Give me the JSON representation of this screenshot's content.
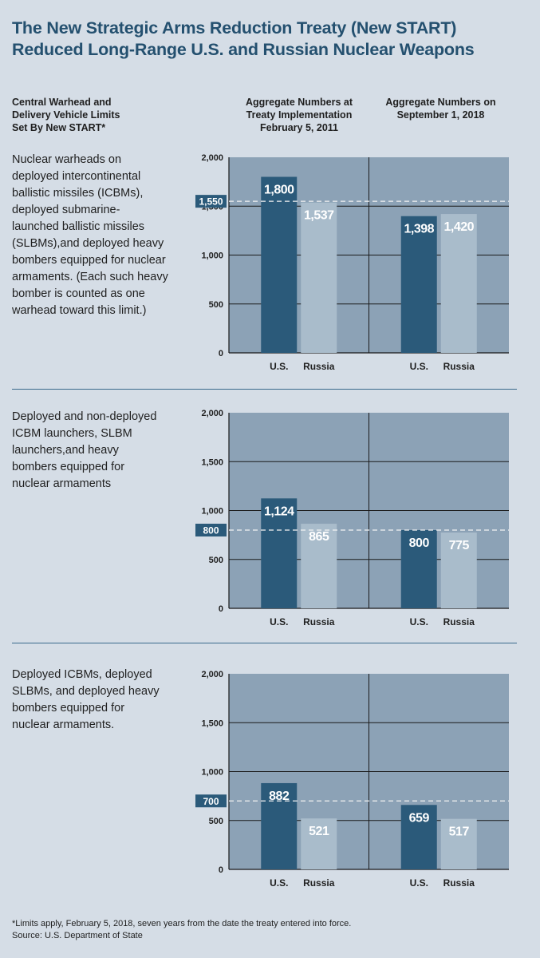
{
  "title_line1": "The New Strategic Arms Reduction Treaty (New START)",
  "title_line2": "Reduced Long-Range U.S. and Russian Nuclear Weapons",
  "headers": {
    "left_line1": "Central Warhead and",
    "left_line2": "Delivery Vehicle Limits",
    "left_line3": "Set By New START*",
    "col1_line1": "Aggregate Numbers at",
    "col1_line2": "Treaty Implementation",
    "col1_line3": "February 5, 2011",
    "col2_line1": "Aggregate Numbers on",
    "col2_line2": "September 1, 2018"
  },
  "descriptions": [
    [
      "Nuclear warheads on",
      "deployed intercontinental",
      "ballistic missiles (ICBMs),",
      "deployed submarine-",
      "launched ballistic missiles",
      "(SLBMs),and deployed heavy",
      "bombers equipped for nuclear",
      "armaments. (Each such heavy",
      "bomber is counted as one",
      "warhead toward this limit.)"
    ],
    [
      "Deployed and non-deployed",
      "ICBM launchers, SLBM",
      "launchers,and heavy",
      "bombers equipped for",
      "nuclear armaments"
    ],
    [
      "Deployed ICBMs, deployed",
      "SLBMs, and deployed heavy",
      "bombers equipped for",
      "nuclear armaments."
    ]
  ],
  "footnote_line1": "*Limits apply, February 5, 2018, seven years from the date the treaty entered into force.",
  "footnote_line2": "Source: U.S. Department of State",
  "colors": {
    "us_bar": "#2b5a7a",
    "russia_bar": "#a9bccb",
    "plot_bg": "#8ca2b6",
    "title": "#24506f",
    "limit_box": "#2b5a7a"
  },
  "chart_data": [
    {
      "type": "bar",
      "categories": [
        "U.S.",
        "Russia"
      ],
      "groups": [
        "February 5, 2011",
        "September 1, 2018"
      ],
      "series": [
        {
          "name": "U.S.",
          "values": [
            1800,
            1398
          ]
        },
        {
          "name": "Russia",
          "values": [
            1537,
            1420
          ]
        }
      ],
      "labels": [
        [
          "1,800",
          "1,537"
        ],
        [
          "1,398",
          "1,420"
        ]
      ],
      "limit": 1550,
      "limit_label": "1,550",
      "ylim": [
        0,
        2000
      ],
      "yticks": [
        0,
        500,
        1000,
        1500,
        2000
      ],
      "yticklabels": [
        "0",
        "500",
        "1,000",
        "1,500",
        "2,000"
      ],
      "grid": true
    },
    {
      "type": "bar",
      "categories": [
        "U.S.",
        "Russia"
      ],
      "groups": [
        "February 5, 2011",
        "September 1, 2018"
      ],
      "series": [
        {
          "name": "U.S.",
          "values": [
            1124,
            800
          ]
        },
        {
          "name": "Russia",
          "values": [
            865,
            775
          ]
        }
      ],
      "labels": [
        [
          "1,124",
          "865"
        ],
        [
          "800",
          "775"
        ]
      ],
      "limit": 800,
      "limit_label": "800",
      "ylim": [
        0,
        2000
      ],
      "yticks": [
        0,
        500,
        1000,
        1500,
        2000
      ],
      "yticklabels": [
        "0",
        "500",
        "1,000",
        "1,500",
        "2,000"
      ],
      "grid": true
    },
    {
      "type": "bar",
      "categories": [
        "U.S.",
        "Russia"
      ],
      "groups": [
        "February 5, 2011",
        "September 1, 2018"
      ],
      "series": [
        {
          "name": "U.S.",
          "values": [
            882,
            659
          ]
        },
        {
          "name": "Russia",
          "values": [
            521,
            517
          ]
        }
      ],
      "labels": [
        [
          "882",
          "521"
        ],
        [
          "659",
          "517"
        ]
      ],
      "limit": 700,
      "limit_label": "700",
      "ylim": [
        0,
        2000
      ],
      "yticks": [
        0,
        500,
        1000,
        1500,
        2000
      ],
      "yticklabels": [
        "0",
        "500",
        "1,000",
        "1,500",
        "2,000"
      ],
      "grid": true
    }
  ]
}
